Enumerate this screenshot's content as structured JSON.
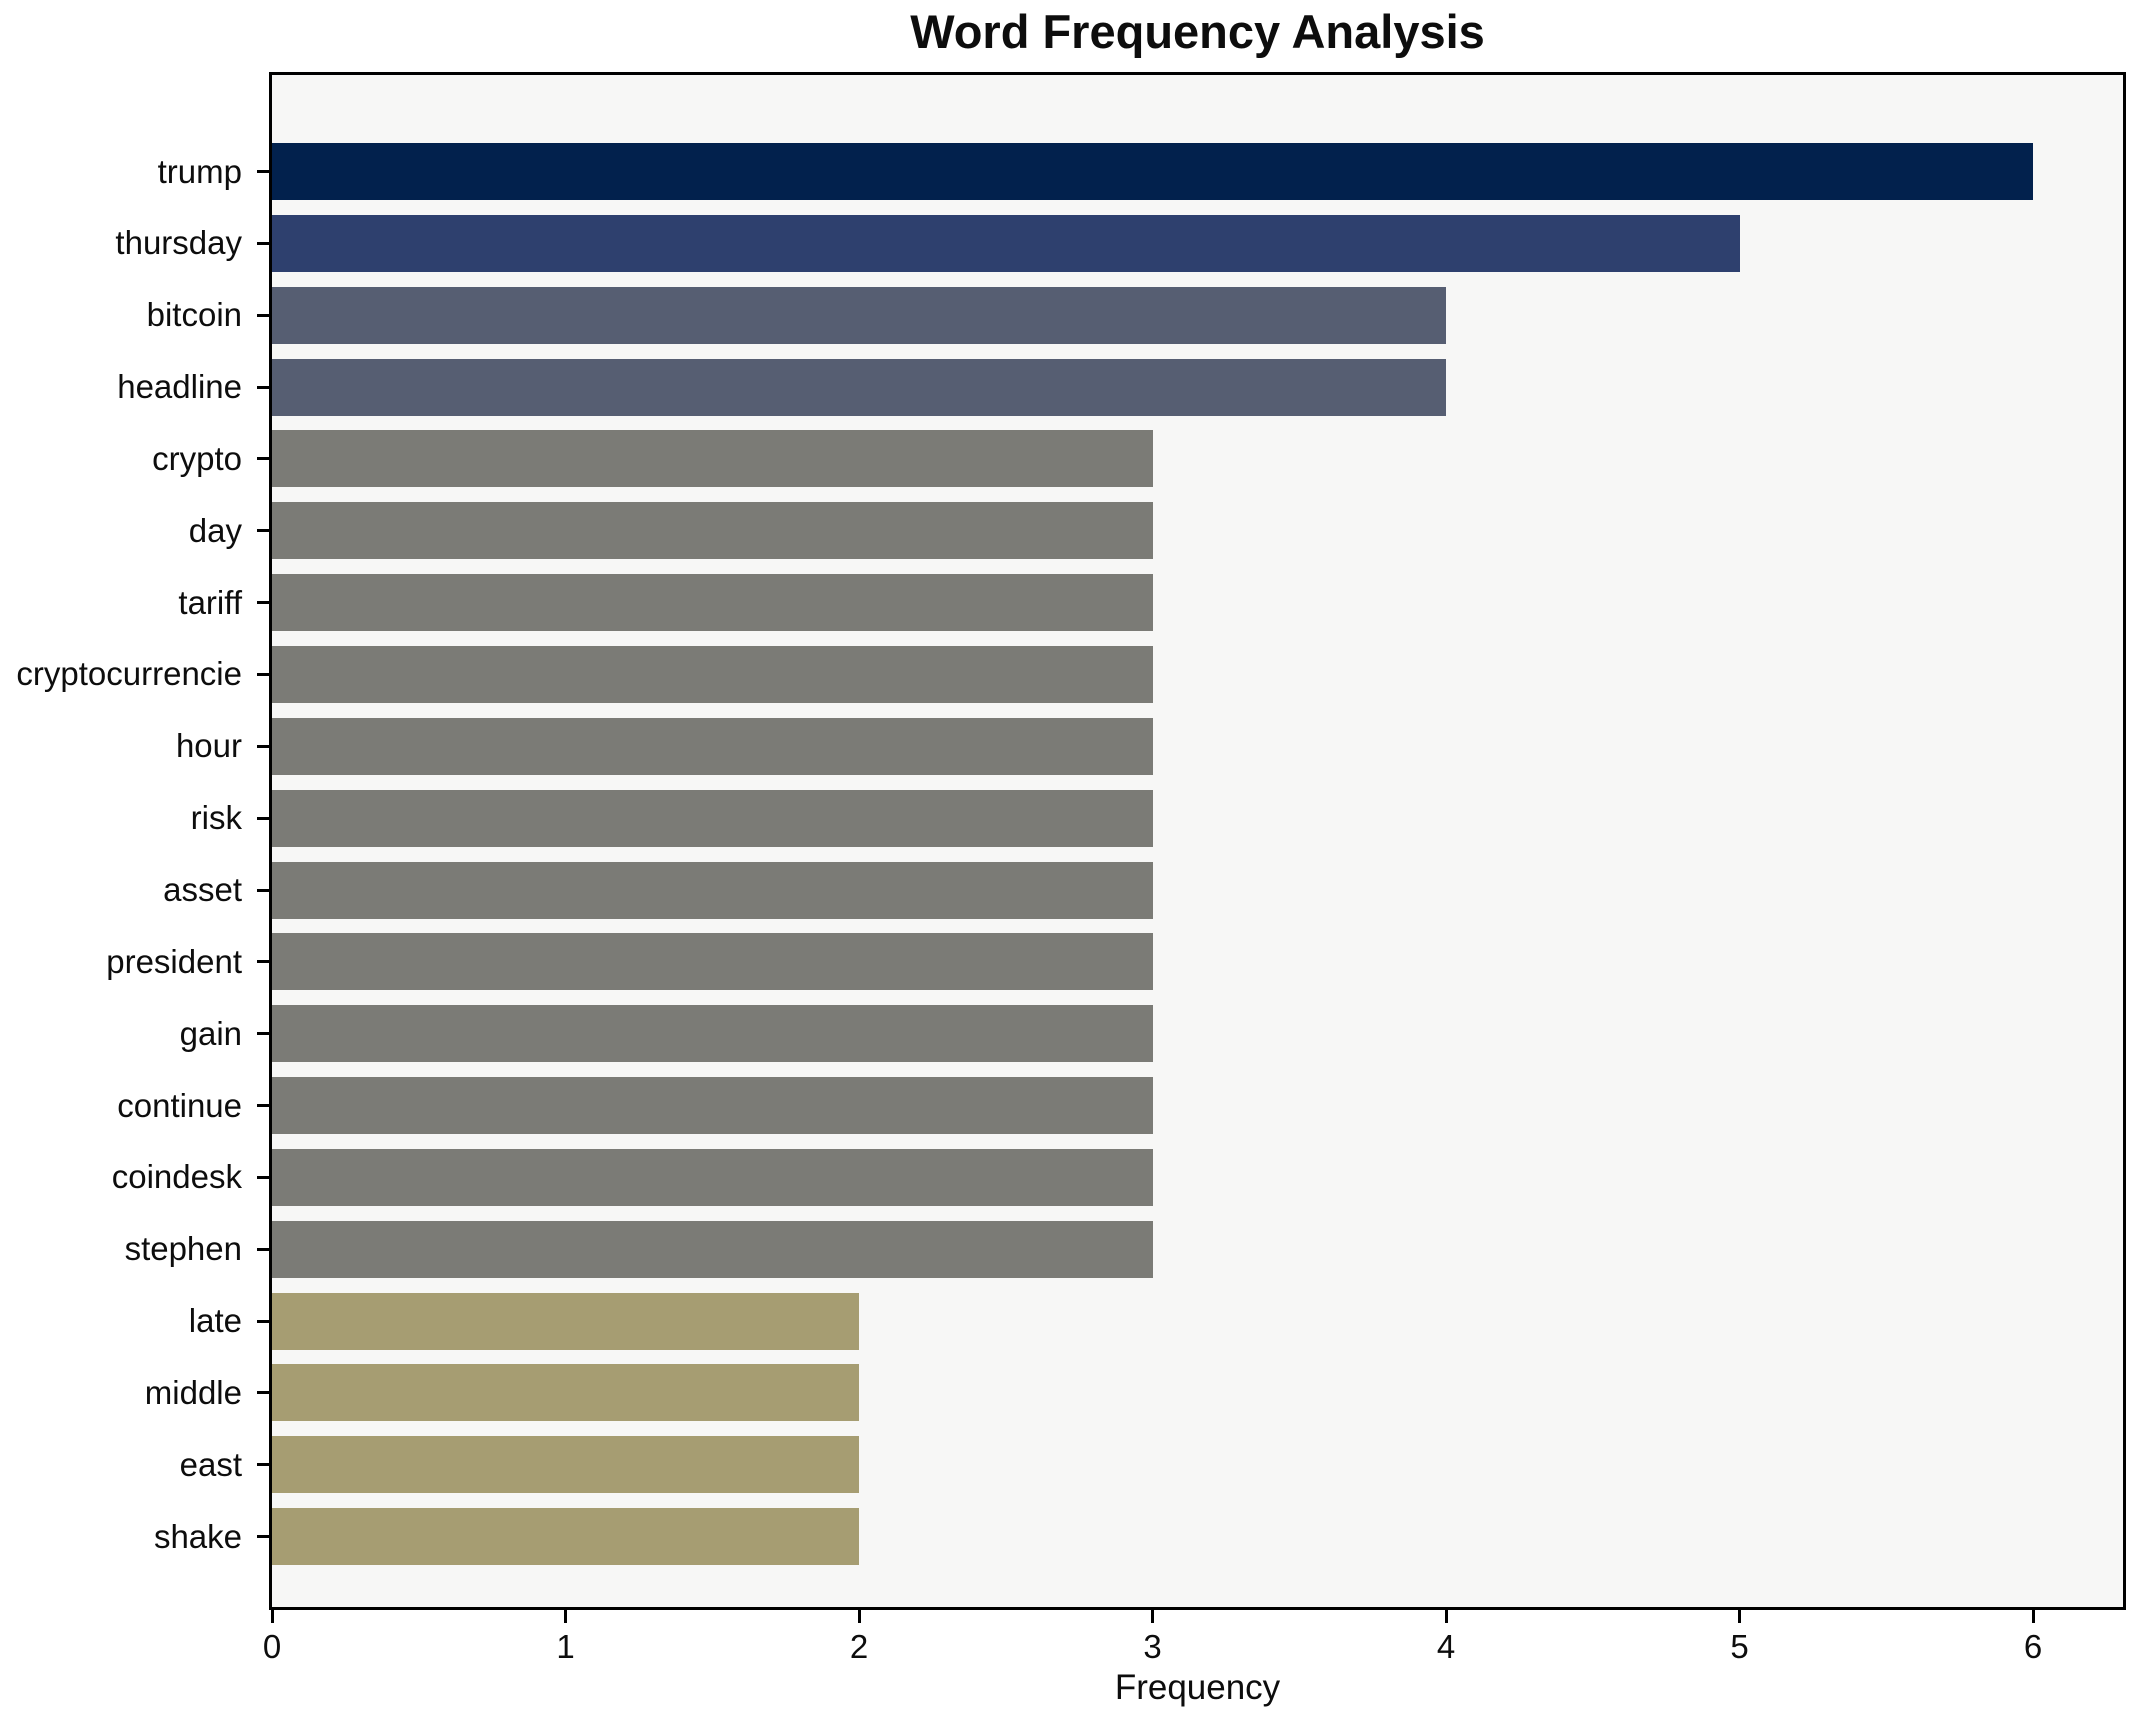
{
  "chart_data": {
    "type": "bar",
    "orientation": "horizontal",
    "title": "Word Frequency Analysis",
    "xlabel": "Frequency",
    "categories": [
      "trump",
      "thursday",
      "bitcoin",
      "headline",
      "crypto",
      "day",
      "tariff",
      "cryptocurrencie",
      "hour",
      "risk",
      "asset",
      "president",
      "gain",
      "continue",
      "coindesk",
      "stephen",
      "late",
      "middle",
      "east",
      "shake"
    ],
    "values": [
      6,
      5,
      4,
      4,
      3,
      3,
      3,
      3,
      3,
      3,
      3,
      3,
      3,
      3,
      3,
      3,
      2,
      2,
      2,
      2
    ],
    "bar_colors": [
      "#02214d",
      "#2e406e",
      "#565e72",
      "#565e72",
      "#7b7b76",
      "#7b7b76",
      "#7b7b76",
      "#7b7b76",
      "#7b7b76",
      "#7b7b76",
      "#7b7b76",
      "#7b7b76",
      "#7b7b76",
      "#7b7b76",
      "#7b7b76",
      "#7b7b76",
      "#a69d72",
      "#a69d72",
      "#a69d72",
      "#a69d72"
    ],
    "x_ticks": [
      0,
      1,
      2,
      3,
      4,
      5,
      6
    ],
    "xlim": [
      0,
      6.31
    ],
    "grid": false,
    "legend": false,
    "plot_bg": "#f7f7f6",
    "figure_bg": "#ffffff",
    "spine_color": "#000000"
  }
}
